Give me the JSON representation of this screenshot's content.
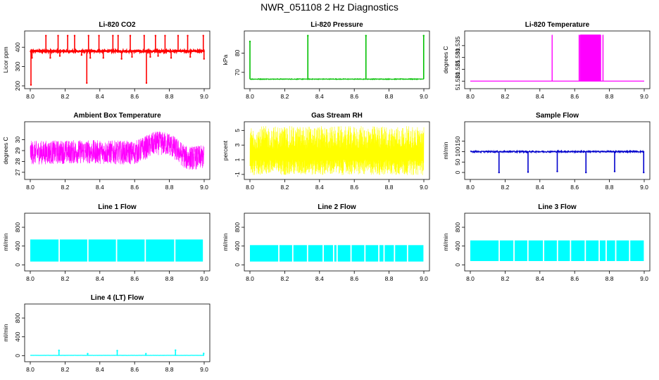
{
  "page_title": "NWR_051108  2 Hz Diagnostics",
  "chart_data": [
    {
      "id": "co2",
      "type": "line",
      "title": "Li-820 CO2",
      "ylabel": "Licor ppm",
      "color": "#ff0000",
      "xlim": [
        8.0,
        9.0
      ],
      "ylim": [
        200,
        470
      ],
      "xticks": [
        "8.0",
        "8.2",
        "8.4",
        "8.6",
        "8.8",
        "9.0"
      ],
      "xtick_values": [
        8.0,
        8.2,
        8.4,
        8.6,
        8.8,
        9.0
      ],
      "yticks": [
        "200",
        "300",
        "400"
      ],
      "ytick_values": [
        200,
        300,
        400
      ],
      "baseline": 380,
      "noise": 4,
      "spikes": [
        {
          "x": 8.004,
          "y": 205
        },
        {
          "x": 8.01,
          "y": 345
        },
        {
          "x": 8.09,
          "y": 460
        },
        {
          "x": 8.115,
          "y": 345
        },
        {
          "x": 8.16,
          "y": 460
        },
        {
          "x": 8.17,
          "y": 355
        },
        {
          "x": 8.215,
          "y": 460
        },
        {
          "x": 8.255,
          "y": 460
        },
        {
          "x": 8.295,
          "y": 360
        },
        {
          "x": 8.325,
          "y": 215
        },
        {
          "x": 8.335,
          "y": 460
        },
        {
          "x": 8.345,
          "y": 345
        },
        {
          "x": 8.395,
          "y": 460
        },
        {
          "x": 8.42,
          "y": 345
        },
        {
          "x": 8.475,
          "y": 460
        },
        {
          "x": 8.505,
          "y": 460
        },
        {
          "x": 8.525,
          "y": 340
        },
        {
          "x": 8.575,
          "y": 460
        },
        {
          "x": 8.585,
          "y": 350
        },
        {
          "x": 8.655,
          "y": 460
        },
        {
          "x": 8.668,
          "y": 215
        },
        {
          "x": 8.69,
          "y": 350
        },
        {
          "x": 8.72,
          "y": 460
        },
        {
          "x": 8.735,
          "y": 355
        },
        {
          "x": 8.775,
          "y": 460
        },
        {
          "x": 8.81,
          "y": 345
        },
        {
          "x": 8.85,
          "y": 460
        },
        {
          "x": 8.905,
          "y": 460
        },
        {
          "x": 8.92,
          "y": 350
        },
        {
          "x": 8.995,
          "y": 460
        },
        {
          "x": 8.999,
          "y": 340
        }
      ]
    },
    {
      "id": "pressure",
      "type": "line",
      "title": "Li-820 Pressure",
      "ylabel": "kPa",
      "color": "#00c000",
      "xlim": [
        8.0,
        9.0
      ],
      "ylim": [
        63,
        90
      ],
      "xticks": [
        "8.0",
        "8.2",
        "8.4",
        "8.6",
        "8.8",
        "9.0"
      ],
      "xtick_values": [
        8.0,
        8.2,
        8.4,
        8.6,
        8.8,
        9.0
      ],
      "yticks": [
        "70",
        "80"
      ],
      "ytick_values": [
        70,
        80
      ],
      "baseline": 66.5,
      "noise": 0.15,
      "spikes": [
        {
          "x": 8.0,
          "y": 86
        },
        {
          "x": 8.333,
          "y": 89
        },
        {
          "x": 8.667,
          "y": 89
        },
        {
          "x": 8.999,
          "y": 89
        }
      ]
    },
    {
      "id": "li820temp",
      "type": "line",
      "title": "Li-820 Temperature",
      "ylabel": "degrees C",
      "color": "#ff00ff",
      "xlim": [
        8.0,
        9.0
      ],
      "ylim": [
        51.518,
        51.54
      ],
      "xticks": [
        "8.0",
        "8.2",
        "8.4",
        "8.6",
        "8.8",
        "9.0"
      ],
      "xtick_values": [
        8.0,
        8.2,
        8.4,
        8.6,
        8.8,
        9.0
      ],
      "yticks": [
        "51.520",
        "51.525",
        "51.530",
        "51.535"
      ],
      "ytick_values": [
        51.52,
        51.525,
        51.53,
        51.535
      ],
      "low": 51.52,
      "high": 51.5395,
      "toggle_ranges": [
        [
          8.47,
          8.471
        ],
        [
          8.625,
          8.627
        ],
        [
          8.632,
          8.75
        ],
        [
          8.762,
          8.764
        ]
      ]
    },
    {
      "id": "ambient",
      "type": "line",
      "title": "Ambient Box Temperature",
      "ylabel": "degrees C",
      "color": "#ff00ff",
      "xlim": [
        8.0,
        9.0
      ],
      "ylim": [
        26.6,
        31.4
      ],
      "xticks": [
        "8.0",
        "8.2",
        "8.4",
        "8.6",
        "8.8",
        "9.0"
      ],
      "xtick_values": [
        8.0,
        8.2,
        8.4,
        8.6,
        8.8,
        9.0
      ],
      "yticks": [
        "27",
        "28",
        "29",
        "30"
      ],
      "ytick_values": [
        27,
        28,
        29,
        30
      ],
      "trend": [
        {
          "x": 8.0,
          "y": 28.8
        },
        {
          "x": 8.3,
          "y": 28.9
        },
        {
          "x": 8.6,
          "y": 28.8
        },
        {
          "x": 8.72,
          "y": 29.7
        },
        {
          "x": 8.8,
          "y": 29.6
        },
        {
          "x": 8.9,
          "y": 28.3
        },
        {
          "x": 9.0,
          "y": 28.4
        }
      ],
      "amplitude": 1.1
    },
    {
      "id": "rh",
      "type": "line",
      "title": "Gas Stream RH",
      "ylabel": "percent",
      "color": "#ffff00",
      "xlim": [
        8.0,
        9.0
      ],
      "ylim": [
        -1.3,
        5.8
      ],
      "xticks": [
        "8.0",
        "8.2",
        "8.4",
        "8.6",
        "8.8",
        "9.0"
      ],
      "xtick_values": [
        8.0,
        8.2,
        8.4,
        8.6,
        8.8,
        9.0
      ],
      "yticks": [
        "-1",
        "1",
        "3",
        "5"
      ],
      "ytick_values": [
        -1,
        1,
        3,
        5
      ],
      "low_range": [
        -1.1,
        1.0
      ],
      "high_range": [
        2.5,
        5.6
      ]
    },
    {
      "id": "sample",
      "type": "line",
      "title": "Sample Flow",
      "ylabel": "ml/min",
      "color": "#0000cc",
      "xlim": [
        8.0,
        9.0
      ],
      "ylim": [
        -20,
        230
      ],
      "xticks": [
        "8.0",
        "8.2",
        "8.4",
        "8.6",
        "8.8",
        "9.0"
      ],
      "xtick_values": [
        8.0,
        8.2,
        8.4,
        8.6,
        8.8,
        9.0
      ],
      "yticks": [
        "0",
        "50",
        "100",
        "150"
      ],
      "ytick_values": [
        0,
        50,
        100,
        150
      ],
      "baseline": 100,
      "noise": 3,
      "dips": [
        {
          "x": 8.165,
          "y": 0
        },
        {
          "x": 8.332,
          "y": 2
        },
        {
          "x": 8.5,
          "y": 5
        },
        {
          "x": 8.665,
          "y": 0
        },
        {
          "x": 8.83,
          "y": 5
        },
        {
          "x": 8.997,
          "y": 0
        }
      ]
    },
    {
      "id": "line1",
      "type": "area",
      "title": "Line 1 Flow",
      "ylabel": "ml/min",
      "color": "#00ffff",
      "xlim": [
        8.0,
        9.0
      ],
      "ylim": [
        -70,
        1040
      ],
      "xticks": [
        "8.0",
        "8.2",
        "8.4",
        "8.6",
        "8.8",
        "9.0"
      ],
      "xtick_values": [
        8.0,
        8.2,
        8.4,
        8.6,
        8.8,
        9.0
      ],
      "yticks": [
        "0",
        "400",
        "800"
      ],
      "ytick_values": [
        0,
        400,
        800
      ],
      "low": 70,
      "high": 540,
      "gaps": [
        8.165,
        8.33,
        8.495,
        8.66,
        8.83,
        8.995
      ]
    },
    {
      "id": "line2",
      "type": "area",
      "title": "Line 2 Flow",
      "ylabel": "ml/min",
      "color": "#00ffff",
      "xlim": [
        8.0,
        9.0
      ],
      "ylim": [
        -70,
        1040
      ],
      "xticks": [
        "8.0",
        "8.2",
        "8.4",
        "8.6",
        "8.8",
        "9.0"
      ],
      "xtick_values": [
        8.0,
        8.2,
        8.4,
        8.6,
        8.8,
        9.0
      ],
      "yticks": [
        "0",
        "400",
        "800"
      ],
      "ytick_values": [
        0,
        400,
        800
      ],
      "low": 70,
      "high": 420,
      "gaps": [
        8.165,
        8.245,
        8.33,
        8.42,
        8.48,
        8.5,
        8.58,
        8.66,
        8.74,
        8.77,
        8.83,
        8.905
      ]
    },
    {
      "id": "line3",
      "type": "area",
      "title": "Line 3 Flow",
      "ylabel": "ml/min",
      "color": "#00ffff",
      "xlim": [
        8.0,
        9.0
      ],
      "ylim": [
        -70,
        1040
      ],
      "xticks": [
        "8.0",
        "8.2",
        "8.4",
        "8.6",
        "8.8",
        "9.0"
      ],
      "xtick_values": [
        8.0,
        8.2,
        8.4,
        8.6,
        8.8,
        9.0
      ],
      "yticks": [
        "0",
        "400",
        "800"
      ],
      "ytick_values": [
        0,
        400,
        800
      ],
      "low": 80,
      "high": 520,
      "gaps": [
        8.165,
        8.25,
        8.33,
        8.42,
        8.5,
        8.575,
        8.66,
        8.74,
        8.78,
        8.835,
        8.915
      ]
    },
    {
      "id": "line4",
      "type": "line",
      "title": "Line 4 (LT) Flow",
      "ylabel": "ml/min",
      "color": "#00ffff",
      "xlim": [
        8.0,
        9.0
      ],
      "ylim": [
        -70,
        1040
      ],
      "xticks": [
        "8.0",
        "8.2",
        "8.4",
        "8.6",
        "8.8",
        "9.0"
      ],
      "xtick_values": [
        8.0,
        8.2,
        8.4,
        8.6,
        8.8,
        9.0
      ],
      "yticks": [
        "0",
        "400",
        "800"
      ],
      "ytick_values": [
        0,
        400,
        800
      ],
      "baseline": 5,
      "noise": 2,
      "spikes": [
        {
          "x": 8.165,
          "y": 110
        },
        {
          "x": 8.33,
          "y": 40
        },
        {
          "x": 8.5,
          "y": 105
        },
        {
          "x": 8.665,
          "y": 40
        },
        {
          "x": 8.835,
          "y": 115
        },
        {
          "x": 8.997,
          "y": 45
        }
      ]
    }
  ]
}
